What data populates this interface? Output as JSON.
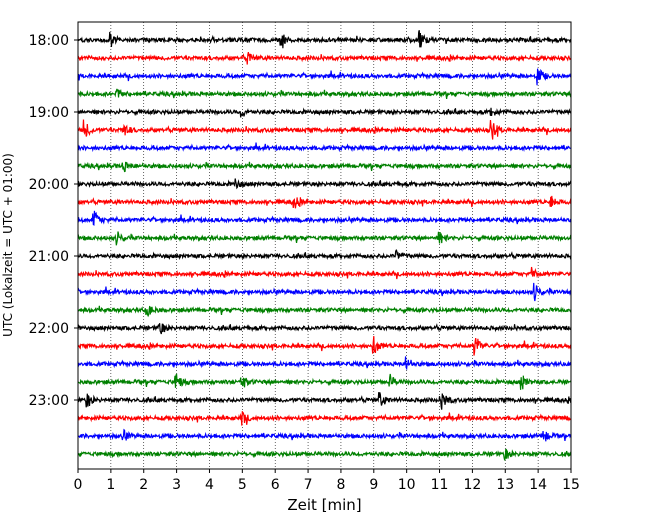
{
  "chart_data": {
    "type": "line",
    "title": "",
    "xlabel": "Zeit  [min]",
    "ylabel": "UTC (Lokalzeit = UTC + 01:00)",
    "xlim": [
      0,
      15
    ],
    "x_ticks": [
      "0",
      "1",
      "2",
      "3",
      "4",
      "5",
      "6",
      "7",
      "8",
      "9",
      "10",
      "11",
      "12",
      "13",
      "14",
      "15"
    ],
    "y_ticks": [
      "18:00",
      "19:00",
      "20:00",
      "21:00",
      "22:00",
      "23:00"
    ],
    "grid": "vertical dotted at each minute",
    "trace_interval_minutes": 15,
    "row_starts": [
      "18:00",
      "18:15",
      "18:30",
      "18:45",
      "19:00",
      "19:15",
      "19:30",
      "19:45",
      "20:00",
      "20:15",
      "20:30",
      "20:45",
      "21:00",
      "21:15",
      "21:30",
      "21:45",
      "22:00",
      "22:15",
      "22:30",
      "22:45",
      "23:00",
      "23:15",
      "23:30",
      "23:45"
    ],
    "color_cycle": [
      "#000000",
      "#ff0000",
      "#0000ff",
      "#008000"
    ],
    "events": [
      {
        "row": 0,
        "t": 1.0,
        "amp": 6
      },
      {
        "row": 0,
        "t": 6.2,
        "amp": 6
      },
      {
        "row": 0,
        "t": 10.4,
        "amp": 8
      },
      {
        "row": 1,
        "t": 5.2,
        "amp": 5
      },
      {
        "row": 2,
        "t": 14.0,
        "amp": 8
      },
      {
        "row": 3,
        "t": 1.2,
        "amp": 4
      },
      {
        "row": 4,
        "t": 5.0,
        "amp": 4
      },
      {
        "row": 4,
        "t": 12.6,
        "amp": 4
      },
      {
        "row": 5,
        "t": 0.2,
        "amp": 9
      },
      {
        "row": 5,
        "t": 1.4,
        "amp": 6
      },
      {
        "row": 5,
        "t": 12.6,
        "amp": 10
      },
      {
        "row": 7,
        "t": 1.4,
        "amp": 5
      },
      {
        "row": 8,
        "t": 4.8,
        "amp": 5
      },
      {
        "row": 9,
        "t": 6.6,
        "amp": 5
      },
      {
        "row": 9,
        "t": 14.4,
        "amp": 5
      },
      {
        "row": 10,
        "t": 0.5,
        "amp": 8
      },
      {
        "row": 11,
        "t": 1.2,
        "amp": 6
      },
      {
        "row": 11,
        "t": 11.0,
        "amp": 6
      },
      {
        "row": 12,
        "t": 9.7,
        "amp": 5
      },
      {
        "row": 13,
        "t": 13.8,
        "amp": 6
      },
      {
        "row": 14,
        "t": 13.9,
        "amp": 8
      },
      {
        "row": 15,
        "t": 2.1,
        "amp": 6
      },
      {
        "row": 16,
        "t": 2.5,
        "amp": 6
      },
      {
        "row": 17,
        "t": 9.0,
        "amp": 9
      },
      {
        "row": 17,
        "t": 12.1,
        "amp": 10
      },
      {
        "row": 18,
        "t": 10.0,
        "amp": 7
      },
      {
        "row": 19,
        "t": 3.0,
        "amp": 8
      },
      {
        "row": 19,
        "t": 5.0,
        "amp": 6
      },
      {
        "row": 19,
        "t": 9.5,
        "amp": 6
      },
      {
        "row": 19,
        "t": 13.5,
        "amp": 8
      },
      {
        "row": 20,
        "t": 0.3,
        "amp": 6
      },
      {
        "row": 20,
        "t": 9.2,
        "amp": 7
      },
      {
        "row": 20,
        "t": 11.1,
        "amp": 8
      },
      {
        "row": 21,
        "t": 5.0,
        "amp": 6
      },
      {
        "row": 22,
        "t": 1.4,
        "amp": 5
      },
      {
        "row": 22,
        "t": 14.2,
        "amp": 5
      },
      {
        "row": 23,
        "t": 13.0,
        "amp": 5
      }
    ]
  }
}
